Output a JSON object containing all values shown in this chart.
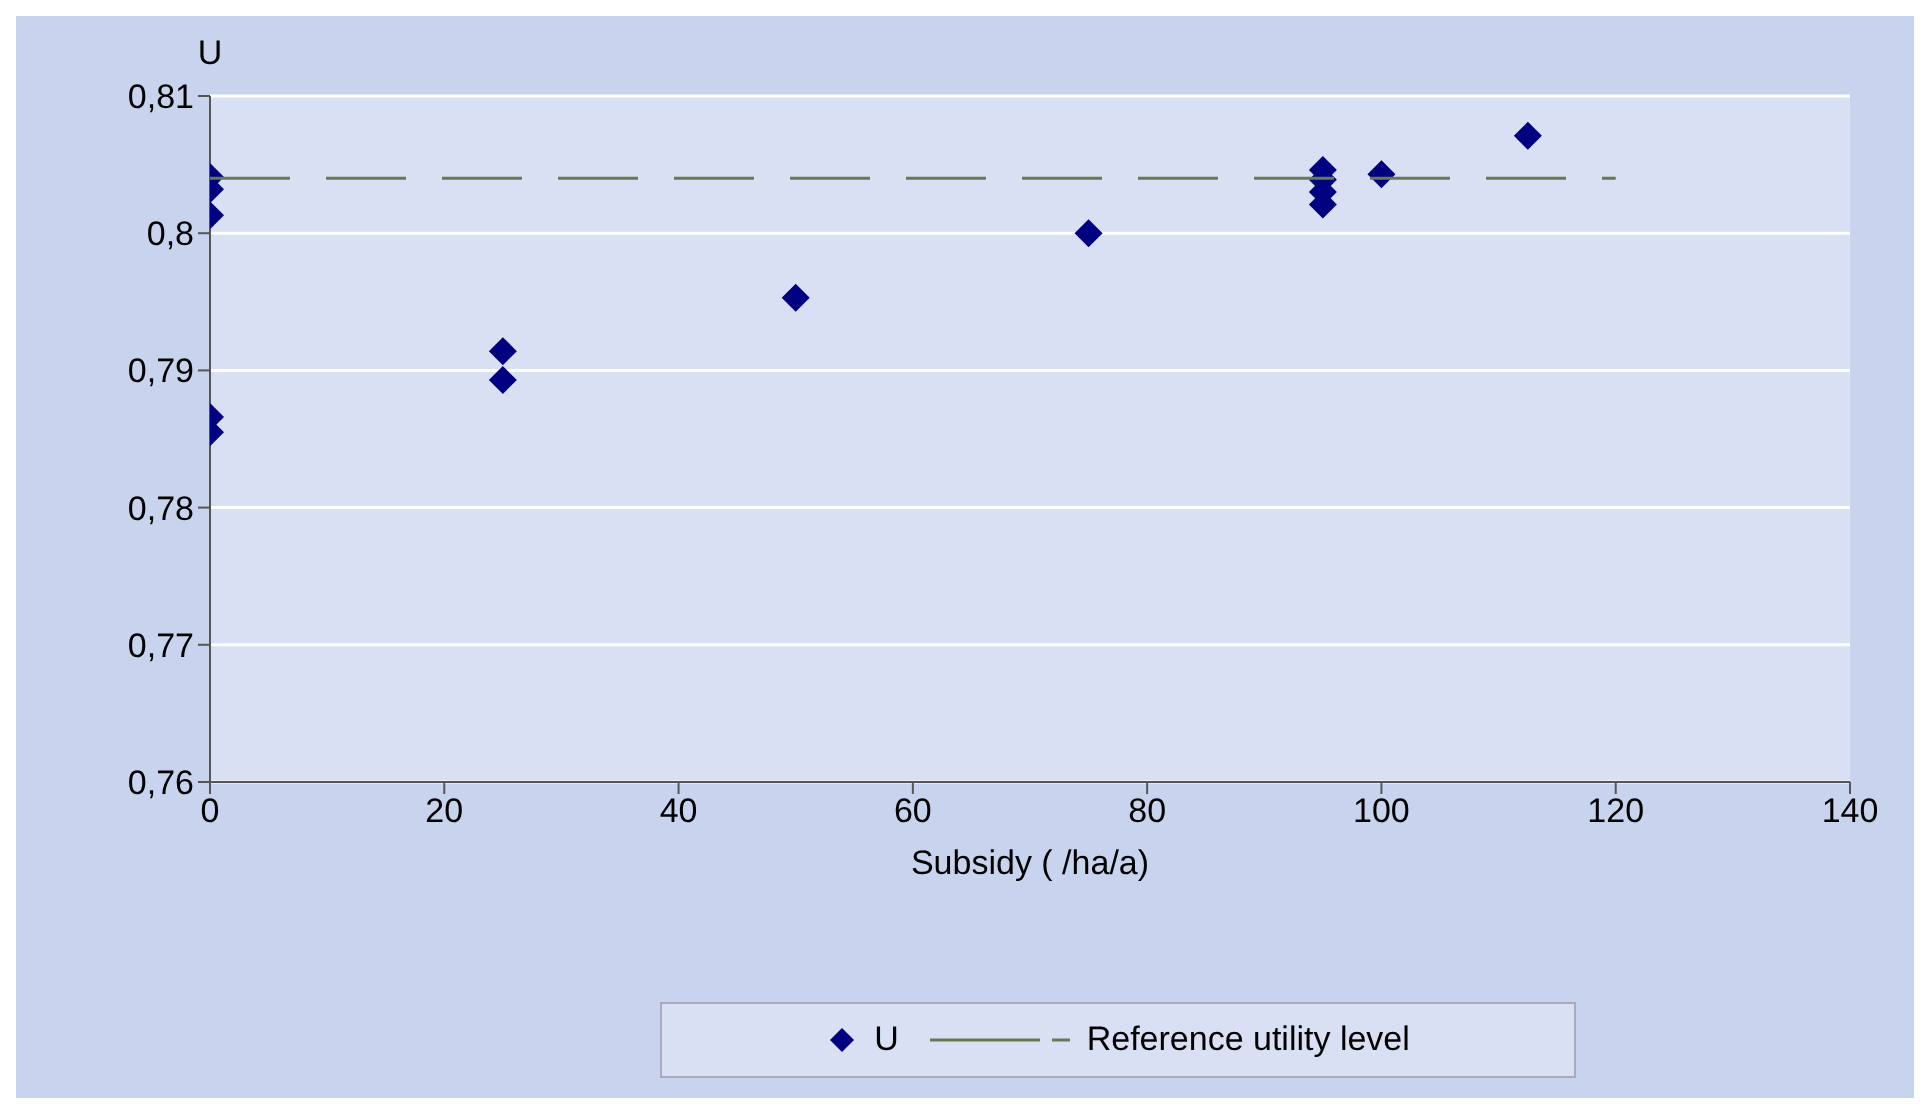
{
  "chart_data": {
    "type": "scatter",
    "xlabel": "Subsidy (  /ha/a)",
    "ylabel": "U",
    "series": [
      {
        "name": "U",
        "color": "#000080",
        "marker": "diamond",
        "x": [
          0,
          0,
          0,
          0,
          0,
          25,
          25,
          50,
          75,
          95,
          95,
          95,
          95,
          100,
          112.5
        ],
        "values": [
          0.8041,
          0.8032,
          0.8013,
          0.7866,
          0.7855,
          0.7914,
          0.7893,
          0.7953,
          0.8,
          0.8046,
          0.8039,
          0.803,
          0.8021,
          0.8043,
          0.8071
        ]
      },
      {
        "name": "Reference utility level",
        "type": "line",
        "color": "#667a55",
        "line_style": "dashed",
        "marker": "none",
        "x": [
          0,
          120
        ],
        "values": [
          0.804,
          0.804
        ]
      }
    ],
    "xlim": [
      0,
      140
    ],
    "xticks": [
      0,
      20,
      40,
      60,
      80,
      100,
      120,
      140
    ],
    "ylim": [
      0.76,
      0.81
    ],
    "yticks": [
      {
        "value": 0.76,
        "label": "0,76"
      },
      {
        "value": 0.77,
        "label": "0,77"
      },
      {
        "value": 0.78,
        "label": "0,78"
      },
      {
        "value": 0.79,
        "label": "0,79"
      },
      {
        "value": 0.8,
        "label": "0,8"
      },
      {
        "value": 0.81,
        "label": "0,81"
      }
    ],
    "grid": "y",
    "legend": "bottom"
  }
}
